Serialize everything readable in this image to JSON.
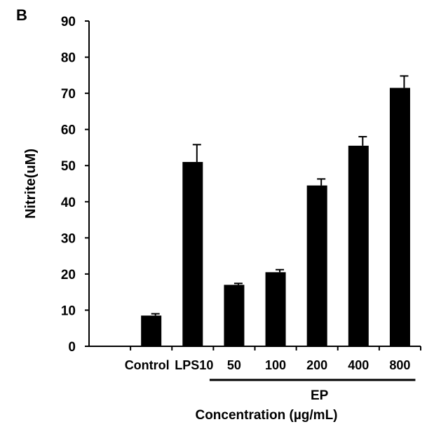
{
  "panel_label": "B",
  "chart_data": {
    "type": "bar",
    "categories": [
      "Control",
      "LPS10",
      "50",
      "100",
      "200",
      "400",
      "800"
    ],
    "values": [
      8.5,
      51,
      17,
      20.5,
      44.5,
      55.5,
      71.5
    ],
    "errors": [
      0.5,
      4.8,
      0.4,
      0.7,
      1.8,
      2.5,
      3.3
    ],
    "ylabel": "Nitrite(uM)",
    "xlabel": "Concentration (µg/mL)",
    "ylim": [
      0,
      90
    ],
    "yticks": [
      0,
      10,
      20,
      30,
      40,
      50,
      60,
      70,
      80,
      90
    ],
    "group_label": "EP",
    "group_categories": [
      "50",
      "100",
      "200",
      "400",
      "800"
    ],
    "bar_color": "#000000",
    "grid": false
  }
}
